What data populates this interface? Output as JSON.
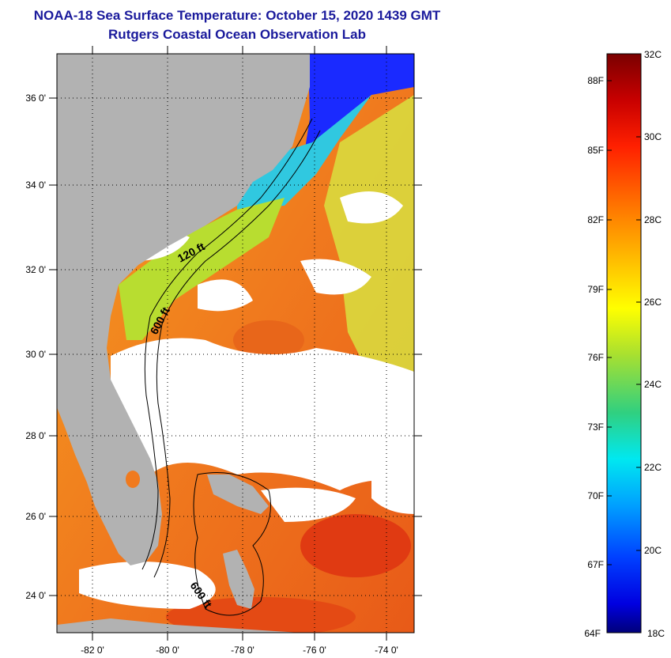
{
  "header": {
    "title": "NOAA-18 Sea Surface Temperature:  October 15, 2020 1439 GMT",
    "subtitle": "Rutgers Coastal Ocean Observation Lab"
  },
  "map": {
    "lat_labels": [
      "36 0'",
      "34 0'",
      "32 0'",
      "30 0'",
      "28 0'",
      "26 0'",
      "24 0'"
    ],
    "lon_labels": [
      "-82 0'",
      "-80 0'",
      "-78 0'",
      "-76 0'",
      "-74 0'"
    ],
    "isobath_labels": [
      "120 ft",
      "600 ft",
      "600 ft"
    ],
    "colors": {
      "land": "#b2b2b2",
      "cloud": "#ffffff",
      "warm": "#f07a1e",
      "hot": "#e03a12",
      "cool": "#b8dd30",
      "cold": "#1a1aff"
    }
  },
  "colorbar": {
    "min_c": 18,
    "max_c": 32,
    "celsius_labels": [
      "32C",
      "30C",
      "28C",
      "26C",
      "24C",
      "22C",
      "20C",
      "18C"
    ],
    "fahrenheit_labels": [
      "88F",
      "85F",
      "82F",
      "79F",
      "76F",
      "73F",
      "70F",
      "67F",
      "64F"
    ],
    "gradient": [
      "#7a0000",
      "#c80000",
      "#ff2000",
      "#ff7a00",
      "#ffc000",
      "#ffff00",
      "#a8e030",
      "#30d080",
      "#00e8f0",
      "#00a0ff",
      "#0040ff",
      "#0000e0",
      "#00007a"
    ]
  }
}
